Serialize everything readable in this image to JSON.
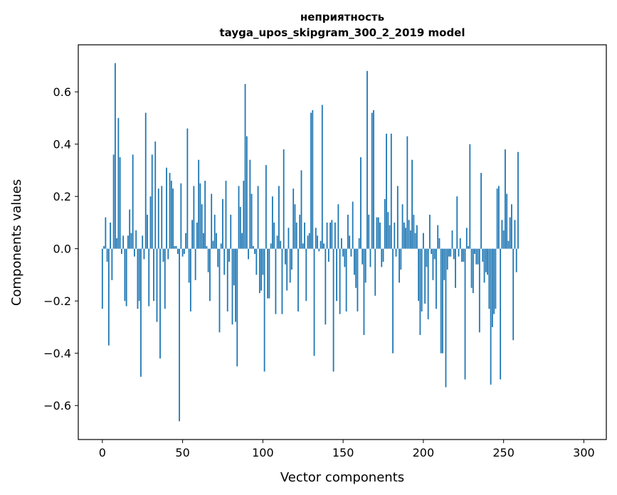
{
  "chart_data": {
    "type": "bar",
    "title_line1": "неприятность",
    "title_line2": "tayga_upos_skipgram_300_2_2019 model",
    "xlabel": "Vector components",
    "ylabel": "Components values",
    "xlim": [
      -15,
      314
    ],
    "ylim": [
      -0.73,
      0.78
    ],
    "xticks": [
      0,
      50,
      100,
      150,
      200,
      250,
      300
    ],
    "xtick_labels": [
      "0",
      "50",
      "100",
      "150",
      "200",
      "250",
      "300"
    ],
    "yticks": [
      -0.6,
      -0.4,
      -0.2,
      0.0,
      0.2,
      0.4,
      0.6
    ],
    "ytick_labels": [
      "−0.6",
      "−0.4",
      "−0.2",
      "0.0",
      "0.2",
      "0.4",
      "0.6"
    ],
    "bar_color": "#1f77b4",
    "grid": false,
    "values": [
      -0.23,
      0.01,
      0.12,
      -0.05,
      -0.37,
      0.1,
      -0.12,
      0.36,
      0.71,
      0.04,
      0.5,
      0.35,
      -0.02,
      0.05,
      -0.2,
      -0.22,
      0.05,
      0.15,
      0.06,
      0.36,
      -0.03,
      0.07,
      -0.23,
      -0.2,
      -0.49,
      0.05,
      -0.04,
      0.52,
      0.13,
      -0.22,
      0.2,
      0.36,
      -0.2,
      0.41,
      -0.28,
      0.23,
      -0.42,
      0.24,
      -0.05,
      -0.23,
      0.31,
      -0.04,
      0.29,
      0.26,
      0.23,
      0.01,
      0.01,
      -0.02,
      -0.66,
      0.25,
      -0.03,
      -0.02,
      0.06,
      0.46,
      -0.13,
      -0.24,
      0.11,
      0.24,
      -0.12,
      0.1,
      0.34,
      0.25,
      0.17,
      0.06,
      0.26,
      0.01,
      -0.09,
      -0.2,
      0.21,
      0.03,
      0.13,
      0.06,
      -0.07,
      -0.32,
      0.02,
      0.19,
      -0.1,
      0.26,
      -0.24,
      -0.05,
      0.13,
      -0.29,
      -0.14,
      -0.28,
      -0.45,
      0.24,
      0.16,
      0.06,
      0.26,
      0.63,
      0.43,
      -0.04,
      0.34,
      0.21,
      0.01,
      -0.02,
      -0.1,
      0.24,
      -0.17,
      -0.16,
      -0.1,
      -0.47,
      0.32,
      -0.19,
      -0.19,
      0.02,
      0.2,
      0.1,
      -0.25,
      0.05,
      0.24,
      0.03,
      -0.25,
      0.38,
      -0.06,
      -0.16,
      0.08,
      -0.13,
      -0.08,
      0.23,
      0.17,
      0.1,
      -0.24,
      0.13,
      0.3,
      0.02,
      0.1,
      -0.2,
      0.05,
      0.06,
      0.52,
      0.53,
      -0.41,
      0.08,
      0.05,
      -0.01,
      0.03,
      0.55,
      0.02,
      -0.29,
      0.1,
      -0.05,
      0.1,
      0.11,
      -0.47,
      0.1,
      -0.2,
      0.17,
      -0.25,
      0.04,
      -0.03,
      -0.07,
      -0.24,
      0.13,
      0.05,
      -0.03,
      0.18,
      -0.1,
      -0.15,
      -0.24,
      0.04,
      0.35,
      -0.06,
      -0.33,
      -0.13,
      0.68,
      0.13,
      -0.07,
      0.52,
      0.53,
      -0.18,
      0.12,
      0.12,
      0.1,
      -0.07,
      -0.05,
      0.19,
      0.44,
      0.14,
      0.09,
      0.44,
      -0.4,
      0.1,
      -0.03,
      0.24,
      -0.13,
      -0.08,
      0.17,
      0.1,
      0.08,
      0.43,
      0.11,
      0.07,
      0.34,
      0.13,
      0.06,
      0.09,
      -0.2,
      -0.33,
      -0.24,
      0.06,
      -0.21,
      -0.07,
      -0.27,
      0.13,
      -0.02,
      -0.12,
      -0.04,
      -0.23,
      0.09,
      0.04,
      -0.4,
      -0.4,
      -0.12,
      -0.53,
      -0.08,
      -0.03,
      -0.03,
      0.07,
      -0.04,
      -0.15,
      0.2,
      -0.03,
      0.04,
      -0.05,
      -0.05,
      -0.5,
      0.08,
      0.01,
      0.4,
      -0.15,
      -0.17,
      -0.02,
      -0.06,
      -0.06,
      -0.32,
      0.29,
      -0.05,
      -0.13,
      -0.09,
      -0.1,
      -0.23,
      -0.52,
      -0.3,
      -0.25,
      -0.23,
      0.23,
      0.24,
      -0.5,
      0.11,
      0.07,
      0.38,
      0.21,
      0.03,
      0.12,
      0.17,
      -0.35,
      0.11,
      -0.09,
      0.37
    ]
  }
}
